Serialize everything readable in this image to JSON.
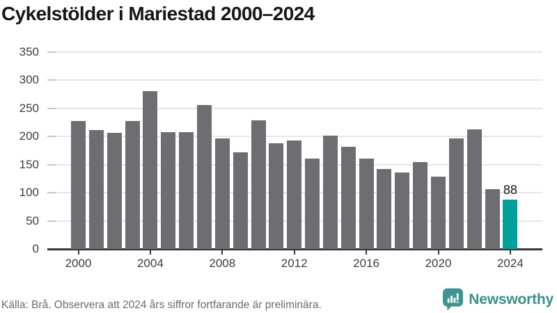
{
  "title": {
    "text": "Cykelstölder i Mariestad 2000–2024"
  },
  "footer": {
    "source_note": "Källa: Brå. Observera att 2024 års siffror fortfarande är preliminära."
  },
  "branding": {
    "name": "Newsworthy",
    "icon": "bar-chart-speech-bubble-icon",
    "text_color": "#3a908c",
    "icon_color": "#3f948f"
  },
  "colors": {
    "bar_default": "#6d6d72",
    "bar_highlight": "#00a19a",
    "gridline": "#e6e6e8",
    "axis": "#36363b",
    "tick_label": "#3d3d42",
    "title": "#161616",
    "footer_text": "#6b6b70"
  },
  "chart_data": {
    "type": "bar",
    "title": "Cykelstölder i Mariestad 2000–2024",
    "categories": [
      "2000",
      "2001",
      "2002",
      "2003",
      "2004",
      "2005",
      "2006",
      "2007",
      "2008",
      "2009",
      "2010",
      "2011",
      "2012",
      "2013",
      "2014",
      "2015",
      "2016",
      "2017",
      "2018",
      "2019",
      "2020",
      "2021",
      "2022",
      "2023",
      "2024"
    ],
    "values": [
      227,
      211,
      206,
      227,
      280,
      207,
      208,
      256,
      196,
      171,
      229,
      188,
      192,
      161,
      201,
      182,
      161,
      142,
      136,
      154,
      129,
      196,
      212,
      106,
      88
    ],
    "highlight_category": "2024",
    "data_labels": [
      {
        "category": "2024",
        "text": "88"
      }
    ],
    "x_tick_labels": [
      "2000",
      "2004",
      "2008",
      "2012",
      "2016",
      "2020",
      "2024"
    ],
    "y_ticks": [
      0,
      50,
      100,
      150,
      200,
      250,
      300,
      350
    ],
    "ylim": [
      0,
      350
    ],
    "xlabel": "",
    "ylabel": "",
    "grid": "horizontal",
    "legend": "none"
  }
}
